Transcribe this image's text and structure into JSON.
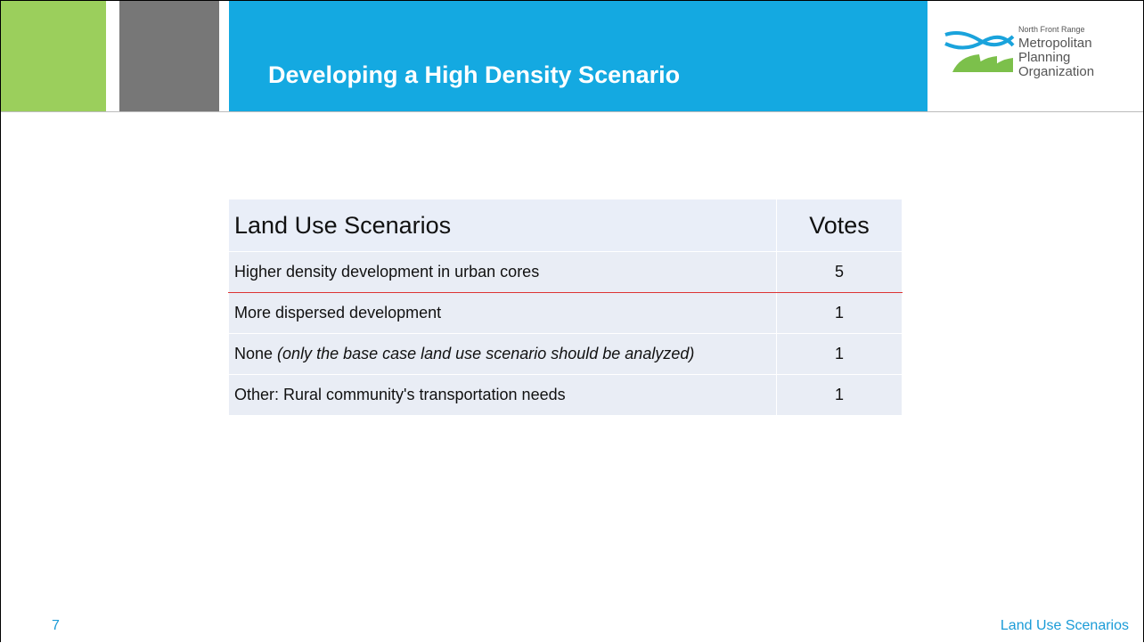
{
  "header": {
    "title": "Developing a High Density Scenario"
  },
  "logo": {
    "lines": [
      "North Front Range",
      "Metropolitan",
      "Planning",
      "Organization"
    ]
  },
  "table": {
    "columns": [
      "Land Use Scenarios",
      "Votes"
    ],
    "rows": [
      [
        [
          "Higher density development in urban cores"
        ],
        5
      ],
      [
        [
          "More dispersed development"
        ],
        1
      ],
      [
        [
          "None",
          "(only the base case land use scenario should be analyzed)"
        ],
        1
      ],
      [
        [
          "Other: Rural community's transportation needs"
        ],
        1
      ]
    ]
  },
  "footer": {
    "page": "7",
    "section": "Land Use Scenarios"
  }
}
